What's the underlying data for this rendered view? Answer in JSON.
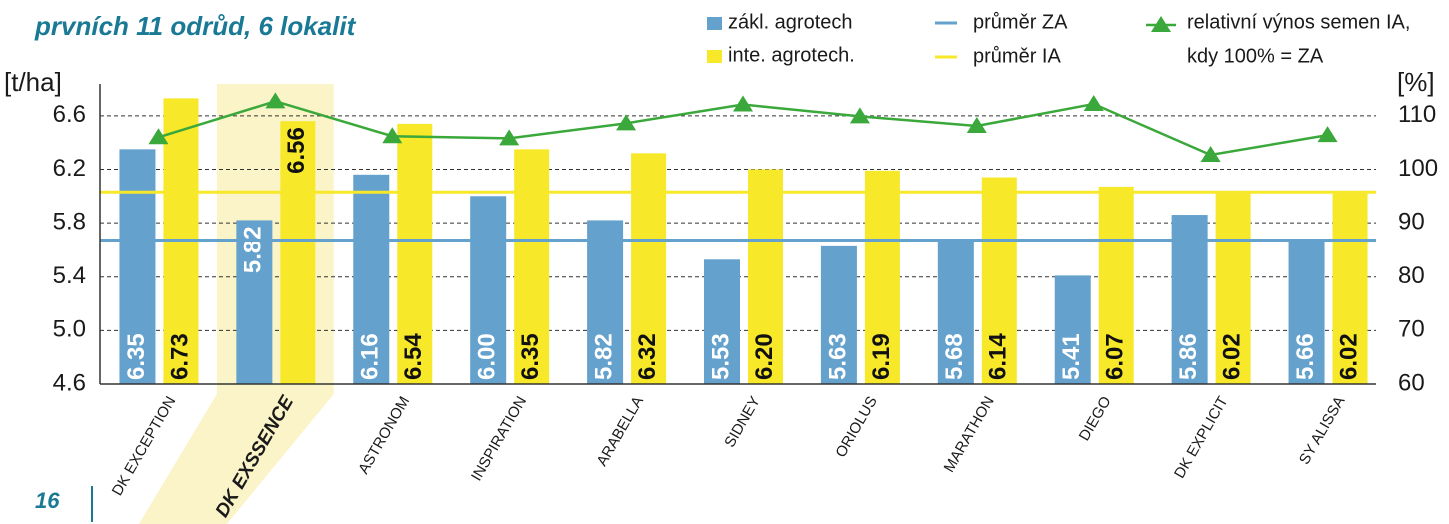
{
  "chart_data": {
    "type": "bar",
    "title": "prvních 11 odrůd, 6 lokalit",
    "page_number": "16",
    "y_label": "[t/ha]",
    "y2_label": "[%]",
    "categories": [
      "DK EXCEPTION",
      "DK EXSSENCE",
      "ASTRONOM",
      "INSPIRATION",
      "ARABELLA",
      "SIDNEY",
      "ORIOLUS",
      "MARATHON",
      "DIEGO",
      "DK EXPLICIT",
      "SY ALISSA"
    ],
    "highlight_index": 1,
    "series": [
      {
        "name": "zákl. agrotech",
        "color": "#64a1cd",
        "values": [
          6.35,
          5.82,
          6.16,
          6.0,
          5.82,
          5.53,
          5.63,
          5.68,
          5.41,
          5.86,
          5.66
        ],
        "value_labels": [
          "6.35",
          "5.82",
          "6.16",
          "6.00",
          "5.82",
          "5.53",
          "5.63",
          "5.68",
          "5.41",
          "5.86",
          "5.66"
        ]
      },
      {
        "name": "inte. agrotech.",
        "color": "#f7e82a",
        "values": [
          6.73,
          6.56,
          6.54,
          6.35,
          6.32,
          6.2,
          6.19,
          6.14,
          6.07,
          6.02,
          6.02
        ],
        "value_labels": [
          "6.73",
          "6.56",
          "6.54",
          "6.35",
          "6.32",
          "6.20",
          "6.19",
          "6.14",
          "6.07",
          "6.02",
          "6.02"
        ]
      }
    ],
    "averages": [
      {
        "name": "průměr ZA",
        "color": "#64a1cd",
        "value": 5.67
      },
      {
        "name": "průměr IA",
        "color": "#f7e82a",
        "value": 6.03
      }
    ],
    "line_series": {
      "name": "relativní výnos semen IA,",
      "name_line2": "kdy 100% = ZA",
      "color": "#3aa83a",
      "axis": "y2",
      "values": [
        106.0,
        112.7,
        106.2,
        105.8,
        108.6,
        112.1,
        109.9,
        108.1,
        112.2,
        102.7,
        106.4
      ]
    },
    "ylim": [
      4.6,
      6.8
    ],
    "yticks": [
      {
        "value": 4.6,
        "label": "4.6"
      },
      {
        "value": 5.0,
        "label": "5.0"
      },
      {
        "value": 5.4,
        "label": "5.4"
      },
      {
        "value": 5.8,
        "label": "5.8"
      },
      {
        "value": 6.2,
        "label": "6.2"
      },
      {
        "value": 6.6,
        "label": "6.6"
      }
    ],
    "y2lim": [
      60,
      115
    ],
    "y2ticks": [
      60,
      70,
      80,
      90,
      100,
      110
    ],
    "grid": true
  }
}
